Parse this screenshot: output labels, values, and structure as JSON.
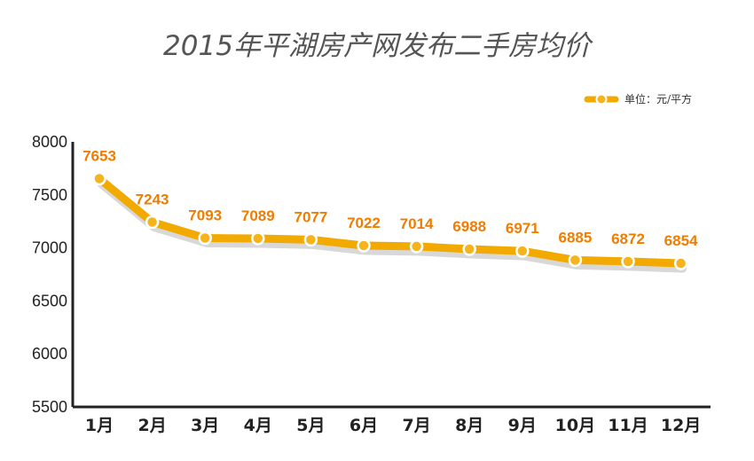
{
  "chart_data": {
    "type": "line",
    "title": "2015年平湖房产网发布二手房均价",
    "legend_label": "单位：元/平方",
    "legend_position": "top-right",
    "categories": [
      "1月",
      "2月",
      "3月",
      "4月",
      "5月",
      "6月",
      "7月",
      "8月",
      "9月",
      "10月",
      "11月",
      "12月"
    ],
    "series": [
      {
        "values": [
          7653,
          7243,
          7093,
          7089,
          7077,
          7022,
          7014,
          6988,
          6971,
          6885,
          6872,
          6854
        ]
      }
    ],
    "y_ticks": [
      "5500",
      "6000",
      "6500",
      "7000",
      "7500",
      "8000"
    ],
    "ylim": [
      5500,
      8000
    ],
    "grid": false,
    "colors": {
      "line": "#f2a900",
      "marker_fill": "#f5b31c",
      "marker_stroke": "#ffffff",
      "label": "#f07d00",
      "shadow": "#d8d8d8",
      "axis": "#222222"
    }
  }
}
